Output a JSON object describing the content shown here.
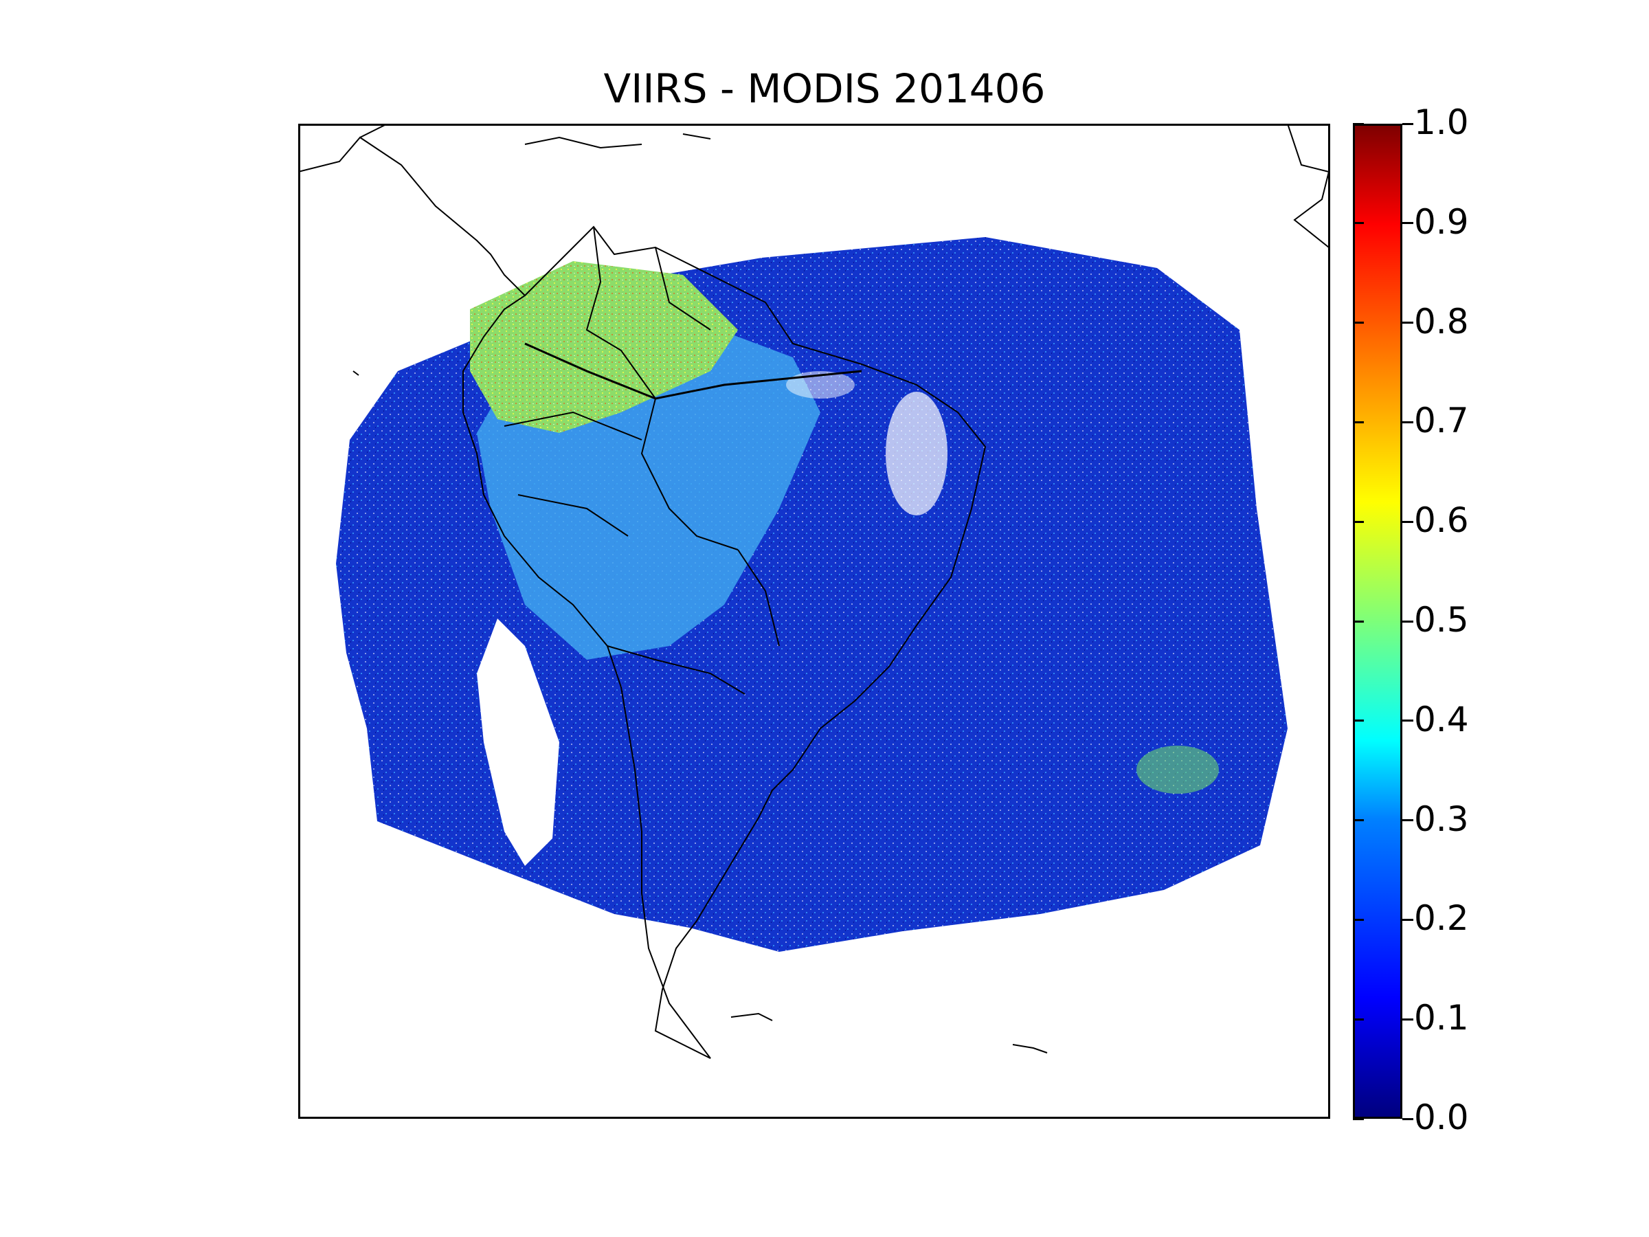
{
  "title": "VIIRS - MODIS 201406",
  "colorbar": {
    "ticks": [
      {
        "value": 0.0,
        "label": "0.0"
      },
      {
        "value": 0.1,
        "label": "0.1"
      },
      {
        "value": 0.2,
        "label": "0.2"
      },
      {
        "value": 0.3,
        "label": "0.3"
      },
      {
        "value": 0.4,
        "label": "0.4"
      },
      {
        "value": 0.5,
        "label": "0.5"
      },
      {
        "value": 0.6,
        "label": "0.6"
      },
      {
        "value": 0.7,
        "label": "0.7"
      },
      {
        "value": 0.8,
        "label": "0.8"
      },
      {
        "value": 0.9,
        "label": "0.9"
      },
      {
        "value": 1.0,
        "label": "1.0"
      }
    ],
    "range": [
      0.0,
      1.0
    ],
    "colormap": "jet"
  },
  "colors": {
    "low": "#00007f",
    "ocean_typical": "#1030d0",
    "land_typical": "#30a0e8",
    "amazon_high": "#90e060",
    "peak": "#7f0000",
    "coastline": "#000000"
  }
}
